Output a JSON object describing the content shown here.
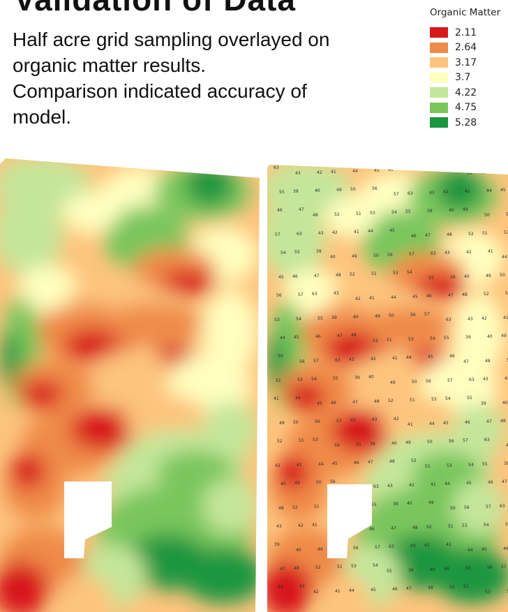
{
  "header": {
    "title": "Validation of Data"
  },
  "description": {
    "lines": [
      "Half acre grid sampling overlayed on",
      "organic matter results.",
      "Comparison indicated accuracy of",
      "model."
    ]
  },
  "legend": {
    "title": "Organic Matter",
    "items": [
      {
        "label": "2.11",
        "color": "#d7191c"
      },
      {
        "label": "2.64",
        "color": "#ef8a4a"
      },
      {
        "label": "3.17",
        "color": "#fdc47d"
      },
      {
        "label": "3.7",
        "color": "#ffffbf"
      },
      {
        "label": "4.22",
        "color": "#c4e69a"
      },
      {
        "label": "4.75",
        "color": "#79c65d"
      },
      {
        "label": "5.28",
        "color": "#1a9641"
      }
    ]
  },
  "maps": {
    "left": {
      "name": "organic-matter-map"
    },
    "right": {
      "name": "grid-sampling-overlay-map",
      "point_labels": [
        "63",
        "43",
        "42",
        "41",
        "44",
        "45",
        "46",
        "47",
        "48",
        "52",
        "51",
        "53",
        "54",
        "55",
        "39",
        "40",
        "49",
        "50",
        "56",
        "57"
      ]
    }
  }
}
